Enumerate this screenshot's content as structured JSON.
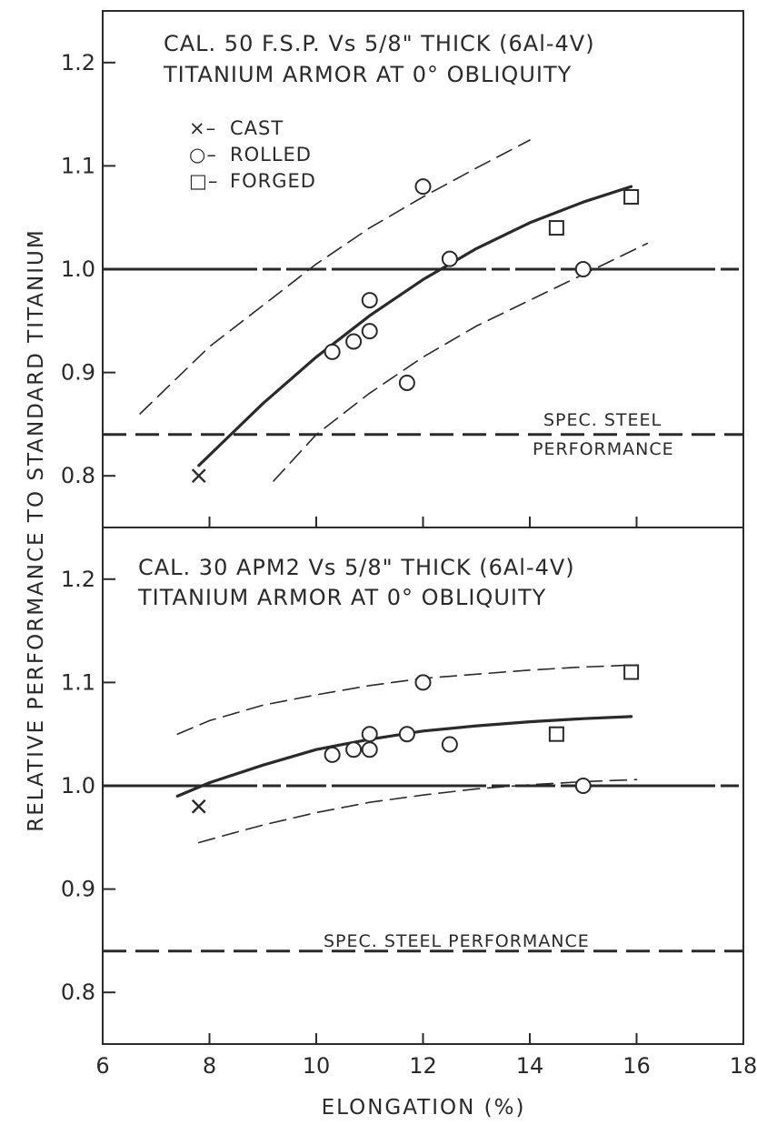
{
  "chart_data": [
    {
      "type": "scatter",
      "title_lines": [
        "CAL. 50 F.S.P. Vs 5/8\" THICK (6Al-4V)",
        "TITANIUM ARMOR AT 0° OBLIQUITY"
      ],
      "xlabel": "ELONGATION (%)",
      "ylabel": "RELATIVE PERFORMANCE TO STANDARD TITANIUM",
      "xlim": [
        6,
        18
      ],
      "ylim": [
        0.75,
        1.25
      ],
      "x_ticks": [
        6,
        8,
        10,
        12,
        14,
        16,
        18
      ],
      "y_ticks": [
        0.8,
        0.9,
        1.0,
        1.1,
        1.2
      ],
      "y_tick_labels": [
        "0.8",
        "0.9",
        "1.0",
        "1.1",
        "1.2"
      ],
      "legend": [
        {
          "marker": "x",
          "label": "CAST"
        },
        {
          "marker": "circle",
          "label": "ROLLED"
        },
        {
          "marker": "square",
          "label": "FORGED"
        }
      ],
      "legend_prefix": [
        "×–",
        "○–",
        "□–"
      ],
      "series": [
        {
          "name": "CAST",
          "marker": "x",
          "points": [
            [
              7.8,
              0.8
            ]
          ]
        },
        {
          "name": "ROLLED",
          "marker": "circle",
          "points": [
            [
              10.3,
              0.92
            ],
            [
              10.7,
              0.93
            ],
            [
              11.0,
              0.97
            ],
            [
              11.0,
              0.94
            ],
            [
              11.7,
              0.89
            ],
            [
              12.0,
              1.08
            ],
            [
              12.5,
              1.01
            ],
            [
              15.0,
              1.0
            ]
          ]
        },
        {
          "name": "FORGED",
          "marker": "square",
          "points": [
            [
              14.5,
              1.04
            ],
            [
              15.9,
              1.07
            ]
          ]
        }
      ],
      "curves": [
        {
          "style": "solid",
          "points": [
            [
              7.8,
              0.81
            ],
            [
              9.0,
              0.87
            ],
            [
              10.0,
              0.915
            ],
            [
              11.0,
              0.955
            ],
            [
              12.0,
              0.99
            ],
            [
              13.0,
              1.02
            ],
            [
              14.0,
              1.045
            ],
            [
              15.0,
              1.065
            ],
            [
              15.9,
              1.08
            ]
          ]
        },
        {
          "style": "dashed-thin",
          "points": [
            [
              6.7,
              0.86
            ],
            [
              8.0,
              0.925
            ],
            [
              9.0,
              0.965
            ],
            [
              10.0,
              1.005
            ],
            [
              11.0,
              1.04
            ],
            [
              12.0,
              1.07
            ],
            [
              13.0,
              1.098
            ],
            [
              14.0,
              1.125
            ]
          ]
        },
        {
          "style": "dashed-thin",
          "points": [
            [
              9.2,
              0.795
            ],
            [
              10.0,
              0.84
            ],
            [
              11.0,
              0.88
            ],
            [
              12.0,
              0.915
            ],
            [
              13.0,
              0.945
            ],
            [
              14.0,
              0.97
            ],
            [
              15.0,
              0.995
            ],
            [
              16.2,
              1.025
            ]
          ]
        }
      ],
      "reference_lines": [
        {
          "y": 1.0,
          "style": "dash-dot"
        },
        {
          "y": 0.84,
          "style": "dashed-thick"
        }
      ],
      "annotation_lines": [
        "SPEC. STEEL",
        "PERFORMANCE"
      ]
    },
    {
      "type": "scatter",
      "title_lines": [
        "CAL. 30 APM2 Vs 5/8\" THICK (6Al-4V)",
        "TITANIUM ARMOR AT 0° OBLIQUITY"
      ],
      "xlabel": "ELONGATION (%)",
      "xlim": [
        6,
        18
      ],
      "ylim": [
        0.75,
        1.25
      ],
      "x_ticks": [
        6,
        8,
        10,
        12,
        14,
        16,
        18
      ],
      "x_tick_labels": [
        "6",
        "8",
        "10",
        "12",
        "14",
        "16",
        "18"
      ],
      "y_ticks": [
        0.8,
        0.9,
        1.0,
        1.1,
        1.2
      ],
      "y_tick_labels": [
        "0.8",
        "0.9",
        "1.0",
        "1.1",
        "1.2"
      ],
      "series": [
        {
          "name": "CAST",
          "marker": "x",
          "points": [
            [
              7.8,
              0.98
            ]
          ]
        },
        {
          "name": "ROLLED",
          "marker": "circle",
          "points": [
            [
              10.3,
              1.03
            ],
            [
              10.7,
              1.035
            ],
            [
              11.0,
              1.05
            ],
            [
              11.0,
              1.035
            ],
            [
              11.7,
              1.05
            ],
            [
              12.0,
              1.1
            ],
            [
              12.5,
              1.04
            ],
            [
              15.0,
              1.0
            ]
          ]
        },
        {
          "name": "FORGED",
          "marker": "square",
          "points": [
            [
              14.5,
              1.05
            ],
            [
              15.9,
              1.11
            ]
          ]
        }
      ],
      "curves": [
        {
          "style": "solid",
          "points": [
            [
              7.4,
              0.99
            ],
            [
              8.0,
              1.003
            ],
            [
              9.0,
              1.02
            ],
            [
              10.0,
              1.035
            ],
            [
              11.0,
              1.045
            ],
            [
              12.0,
              1.053
            ],
            [
              13.0,
              1.058
            ],
            [
              14.0,
              1.062
            ],
            [
              15.0,
              1.065
            ],
            [
              15.9,
              1.067
            ]
          ]
        },
        {
          "style": "dashed-thin",
          "points": [
            [
              7.4,
              1.05
            ],
            [
              8.0,
              1.063
            ],
            [
              9.0,
              1.078
            ],
            [
              10.0,
              1.088
            ],
            [
              11.0,
              1.097
            ],
            [
              12.0,
              1.104
            ],
            [
              13.0,
              1.108
            ],
            [
              14.0,
              1.112
            ],
            [
              15.0,
              1.115
            ],
            [
              16.0,
              1.117
            ]
          ]
        },
        {
          "style": "dashed-thin",
          "points": [
            [
              7.8,
              0.945
            ],
            [
              8.5,
              0.955
            ],
            [
              9.0,
              0.962
            ],
            [
              10.0,
              0.974
            ],
            [
              11.0,
              0.984
            ],
            [
              12.0,
              0.991
            ],
            [
              13.0,
              0.997
            ],
            [
              14.0,
              1.001
            ],
            [
              15.0,
              1.004
            ],
            [
              16.0,
              1.006
            ]
          ]
        }
      ],
      "reference_lines": [
        {
          "y": 1.0,
          "style": "dash-dot"
        },
        {
          "y": 0.84,
          "style": "dashed-thick"
        }
      ],
      "annotation_lines": [
        "SPEC. STEEL PERFORMANCE"
      ]
    }
  ]
}
